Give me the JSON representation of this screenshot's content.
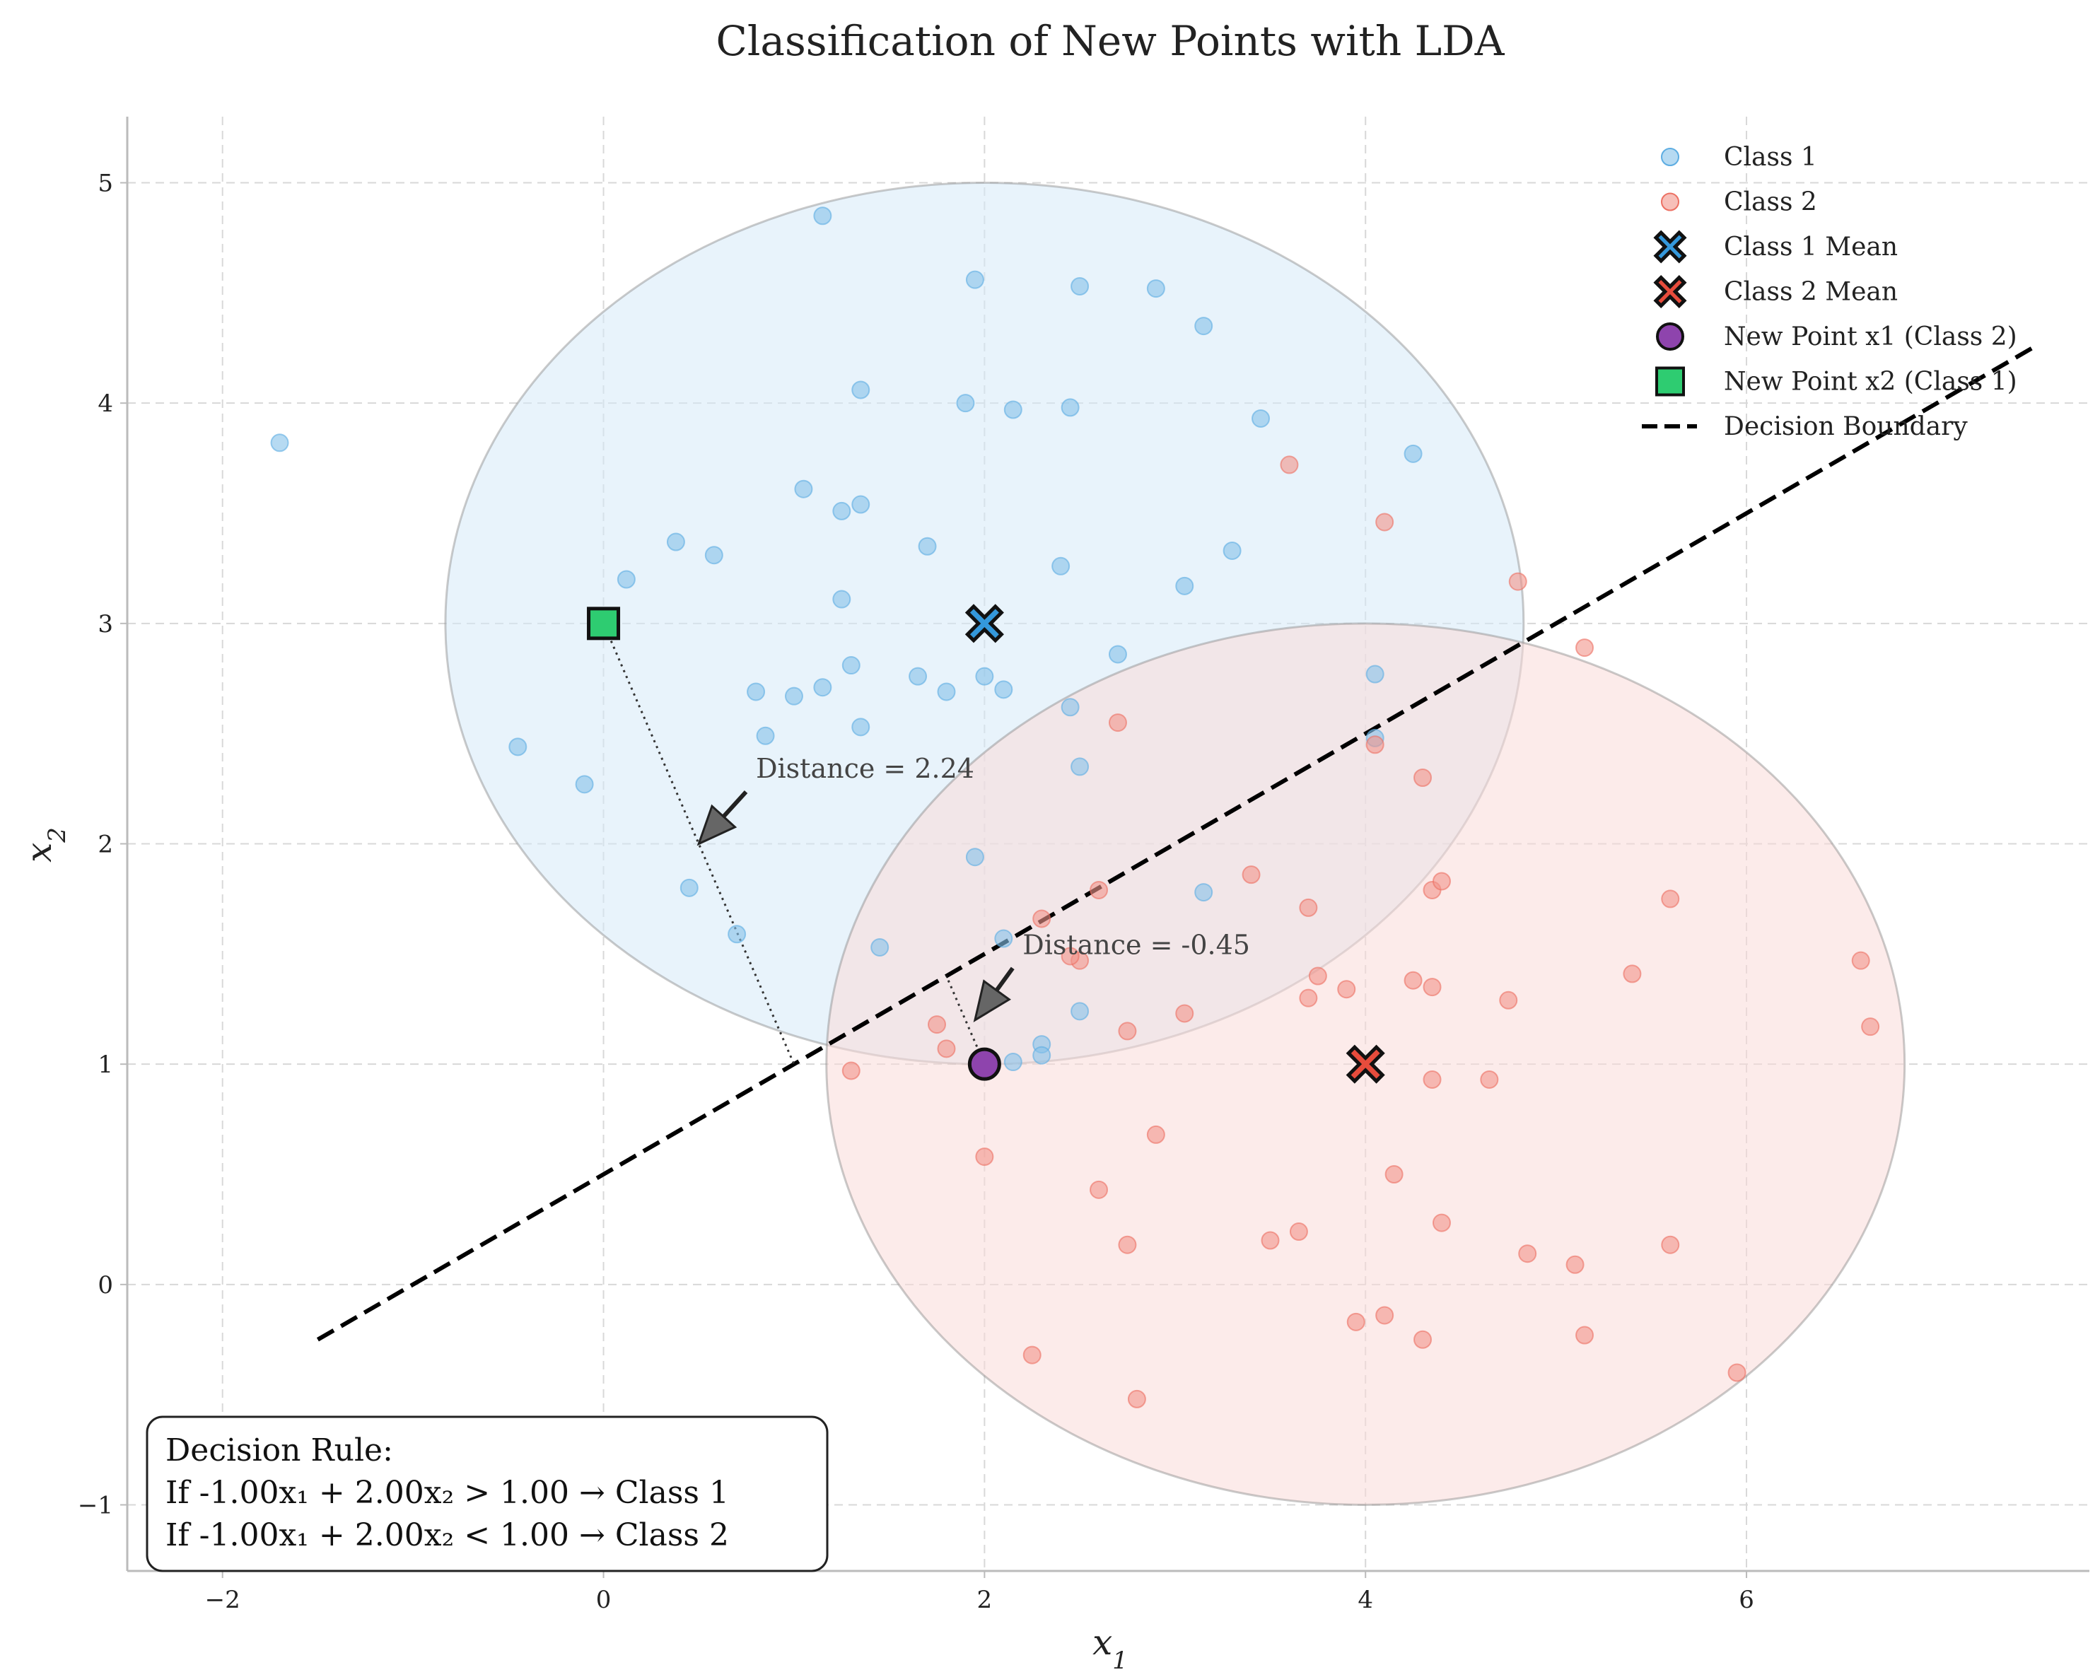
{
  "chart_data": {
    "type": "scatter",
    "title": "Classification of New Points with LDA",
    "xlabel": "x",
    "xlabel_sub": "1",
    "ylabel": "x",
    "ylabel_sub": "2",
    "xlim": [
      -2.5,
      7.8
    ],
    "ylim": [
      -1.3,
      5.3
    ],
    "xticks": [
      -2,
      0,
      2,
      4,
      6
    ],
    "yticks": [
      -1,
      0,
      1,
      2,
      3,
      4,
      5
    ],
    "grid": true,
    "legend_position": "top-right",
    "colors": {
      "class1": "#85c1e9",
      "class2": "#f1948a",
      "class1_mean": "#3498db",
      "class2_mean": "#e74c3c",
      "new_point_x1": "#8e44ad",
      "new_point_x2": "#2ecc71",
      "boundary": "#000000",
      "ellipse1_fill": "#d6eaf8",
      "ellipse2_fill": "#fadbd8"
    },
    "series": [
      {
        "name": "Class 1",
        "marker": "circle",
        "points": [
          [
            -1.7,
            3.82
          ],
          [
            1.15,
            4.85
          ],
          [
            1.95,
            4.56
          ],
          [
            2.5,
            4.53
          ],
          [
            2.9,
            4.52
          ],
          [
            3.15,
            4.35
          ],
          [
            1.35,
            4.06
          ],
          [
            1.9,
            4.0
          ],
          [
            2.15,
            3.97
          ],
          [
            2.45,
            3.98
          ],
          [
            3.45,
            3.93
          ],
          [
            4.25,
            3.77
          ],
          [
            1.05,
            3.61
          ],
          [
            1.25,
            3.51
          ],
          [
            1.35,
            3.54
          ],
          [
            0.38,
            3.37
          ],
          [
            0.58,
            3.31
          ],
          [
            1.7,
            3.35
          ],
          [
            2.4,
            3.26
          ],
          [
            3.3,
            3.33
          ],
          [
            3.05,
            3.17
          ],
          [
            0.12,
            3.2
          ],
          [
            1.25,
            3.11
          ],
          [
            2.7,
            2.86
          ],
          [
            1.3,
            2.81
          ],
          [
            1.65,
            2.76
          ],
          [
            2.0,
            2.76
          ],
          [
            0.8,
            2.69
          ],
          [
            1.0,
            2.67
          ],
          [
            1.15,
            2.71
          ],
          [
            1.8,
            2.69
          ],
          [
            2.1,
            2.7
          ],
          [
            2.45,
            2.62
          ],
          [
            4.05,
            2.77
          ],
          [
            1.35,
            2.53
          ],
          [
            0.85,
            2.49
          ],
          [
            -0.45,
            2.44
          ],
          [
            -0.1,
            2.27
          ],
          [
            2.5,
            2.35
          ],
          [
            4.05,
            2.48
          ],
          [
            1.95,
            1.94
          ],
          [
            0.45,
            1.8
          ],
          [
            3.15,
            1.78
          ],
          [
            0.7,
            1.59
          ],
          [
            1.45,
            1.53
          ],
          [
            2.1,
            1.57
          ],
          [
            2.5,
            1.24
          ],
          [
            2.3,
            1.09
          ],
          [
            2.15,
            1.01
          ],
          [
            2.3,
            1.04
          ]
        ]
      },
      {
        "name": "Class 2",
        "marker": "circle",
        "points": [
          [
            3.6,
            3.72
          ],
          [
            4.1,
            3.46
          ],
          [
            4.8,
            3.19
          ],
          [
            5.15,
            2.89
          ],
          [
            2.7,
            2.55
          ],
          [
            4.05,
            2.45
          ],
          [
            4.3,
            2.3
          ],
          [
            3.4,
            1.86
          ],
          [
            2.6,
            1.79
          ],
          [
            4.35,
            1.79
          ],
          [
            4.4,
            1.83
          ],
          [
            5.6,
            1.75
          ],
          [
            3.7,
            1.71
          ],
          [
            2.3,
            1.66
          ],
          [
            2.5,
            1.47
          ],
          [
            2.45,
            1.49
          ],
          [
            3.75,
            1.4
          ],
          [
            4.25,
            1.38
          ],
          [
            5.4,
            1.41
          ],
          [
            6.6,
            1.47
          ],
          [
            3.7,
            1.3
          ],
          [
            3.9,
            1.34
          ],
          [
            4.35,
            1.35
          ],
          [
            4.75,
            1.29
          ],
          [
            3.05,
            1.23
          ],
          [
            1.75,
            1.18
          ],
          [
            2.75,
            1.15
          ],
          [
            6.65,
            1.17
          ],
          [
            1.8,
            1.07
          ],
          [
            1.3,
            0.97
          ],
          [
            4.35,
            0.93
          ],
          [
            4.65,
            0.93
          ],
          [
            2.9,
            0.68
          ],
          [
            2.0,
            0.58
          ],
          [
            4.15,
            0.5
          ],
          [
            2.6,
            0.43
          ],
          [
            4.4,
            0.28
          ],
          [
            3.65,
            0.24
          ],
          [
            3.5,
            0.2
          ],
          [
            2.75,
            0.18
          ],
          [
            4.85,
            0.14
          ],
          [
            5.1,
            0.09
          ],
          [
            5.6,
            0.18
          ],
          [
            3.95,
            -0.17
          ],
          [
            4.1,
            -0.14
          ],
          [
            4.3,
            -0.25
          ],
          [
            5.15,
            -0.23
          ],
          [
            5.95,
            -0.4
          ],
          [
            2.25,
            -0.32
          ],
          [
            2.8,
            -0.52
          ]
        ]
      },
      {
        "name": "Class 1 Mean",
        "marker": "x",
        "points": [
          [
            2,
            3
          ]
        ]
      },
      {
        "name": "Class 2 Mean",
        "marker": "x",
        "points": [
          [
            4,
            1
          ]
        ]
      },
      {
        "name": "New Point x1 (Class 2)",
        "marker": "circle",
        "points": [
          [
            2,
            1
          ]
        ]
      },
      {
        "name": "New Point x2 (Class 1)",
        "marker": "square",
        "points": [
          [
            0,
            3
          ]
        ]
      },
      {
        "name": "Decision Boundary",
        "marker": "dashed-line",
        "points": [
          [
            -1.5,
            -0.25
          ],
          [
            7.5,
            4.25
          ]
        ]
      }
    ],
    "ellipses": [
      {
        "center": [
          2,
          3
        ],
        "radius_x": 2.83,
        "radius_y": 2.0
      },
      {
        "center": [
          4,
          1
        ],
        "radius_x": 2.83,
        "radius_y": 2.0
      }
    ],
    "annotations": [
      {
        "text": "Distance = 2.24",
        "text_at": [
          0.8,
          2.3
        ],
        "arrow_to": [
          0.5,
          2.0
        ],
        "foot_from": [
          0,
          3
        ],
        "foot_to": [
          1.0,
          1.0
        ]
      },
      {
        "text": "Distance = -0.45",
        "text_at": [
          2.2,
          1.5
        ],
        "arrow_to": [
          1.95,
          1.2
        ],
        "foot_from": [
          2,
          1
        ],
        "foot_to": [
          1.8,
          1.4
        ]
      }
    ],
    "decision_rule": {
      "title": "Decision Rule:",
      "line1": "If -1.00x₁ + 2.00x₂ > 1.00 → Class 1",
      "line2": "If -1.00x₁ + 2.00x₂ < 1.00 → Class 2"
    }
  }
}
